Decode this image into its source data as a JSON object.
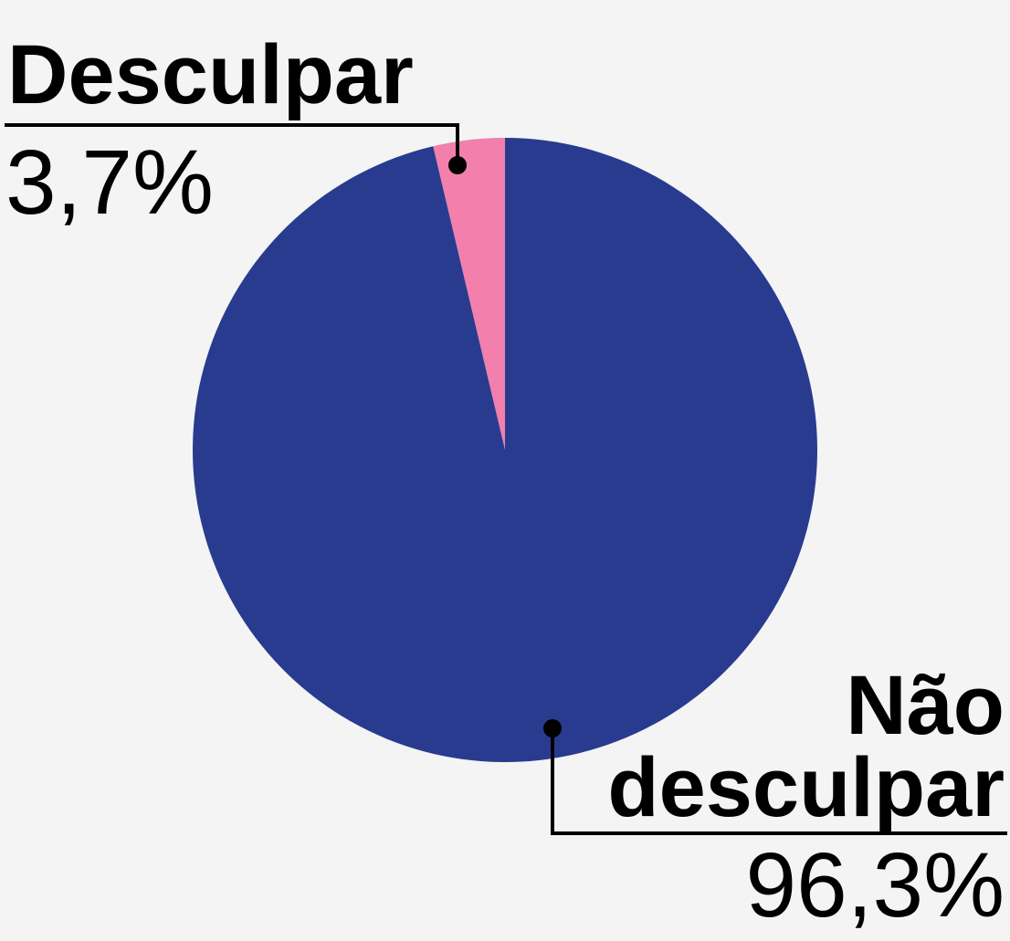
{
  "chart_data": {
    "type": "pie",
    "categories": [
      "Desculpar",
      "Não desculpar"
    ],
    "values": [
      3.7,
      96.3
    ],
    "value_labels": [
      "3,7%",
      "96,3%"
    ],
    "colors": [
      "#f27fac",
      "#293b8f"
    ]
  }
}
